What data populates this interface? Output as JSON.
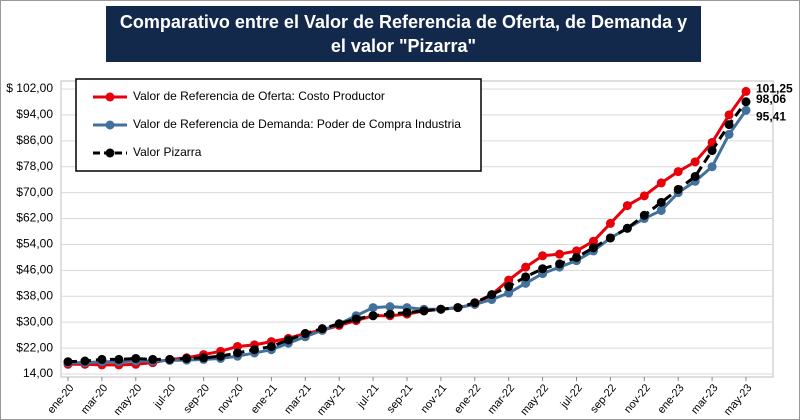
{
  "chart_data": {
    "type": "line",
    "title": "Comparativo entre el Valor de Referencia de Oferta, de Demanda y el valor \"Pizarra\"",
    "categories": [
      "ene-20",
      null,
      "mar-20",
      null,
      "may-20",
      null,
      "jul-20",
      null,
      "sep-20",
      null,
      "nov-20",
      null,
      "ene-21",
      null,
      "mar-21",
      null,
      "may-21",
      null,
      "jul-21",
      null,
      "sep-21",
      null,
      "nov-21",
      null,
      "ene-22",
      null,
      "mar-22",
      null,
      "may-22",
      null,
      "jul-22",
      null,
      "sep-22",
      null,
      "nov-22",
      null,
      "ene-23",
      null,
      "mar-23",
      null,
      "may-23"
    ],
    "series": [
      {
        "name": "Valor de Referencia de Oferta: Costo Productor",
        "color": "#e8000b",
        "style": "solid",
        "values": [
          17.0,
          17.0,
          16.8,
          16.8,
          17.0,
          17.5,
          18.5,
          19.0,
          20.0,
          21.0,
          22.5,
          23.0,
          24.0,
          25.0,
          26.5,
          27.5,
          29.0,
          30.5,
          32.0,
          32.0,
          32.5,
          33.5,
          34.0,
          34.5,
          35.5,
          38.5,
          43.0,
          47.0,
          50.5,
          51.0,
          52.0,
          55.0,
          60.5,
          66.0,
          69.0,
          73.0,
          76.5,
          79.5,
          85.5,
          94.0,
          101.25
        ],
        "value_labels": [
          null,
          null,
          null,
          null,
          null,
          null,
          null,
          null,
          null,
          null,
          null,
          null,
          null,
          null,
          null,
          null,
          null,
          null,
          null,
          null,
          null,
          null,
          null,
          null,
          null,
          null,
          null,
          null,
          null,
          null,
          null,
          null,
          null,
          null,
          null,
          null,
          null,
          null,
          null,
          null,
          "101,25"
        ]
      },
      {
        "name": "Valor de Referencia de Demanda: Poder de Compra Industria",
        "color": "#41719c",
        "style": "solid",
        "values": [
          17.5,
          17.5,
          17.8,
          17.8,
          18.0,
          18.0,
          18.2,
          18.3,
          18.5,
          18.8,
          19.5,
          20.5,
          21.5,
          23.5,
          25.5,
          27.5,
          29.5,
          32.0,
          34.5,
          34.8,
          34.5,
          34.0,
          34.0,
          34.5,
          35.5,
          37.0,
          39.0,
          42.0,
          45.0,
          47.0,
          49.0,
          52.0,
          56.0,
          59.0,
          62.0,
          64.5,
          70.0,
          73.5,
          78.0,
          88.0,
          95.41
        ],
        "value_labels": [
          null,
          null,
          null,
          null,
          null,
          null,
          null,
          null,
          null,
          null,
          null,
          null,
          null,
          null,
          null,
          null,
          null,
          null,
          null,
          null,
          null,
          null,
          null,
          null,
          null,
          null,
          null,
          null,
          null,
          null,
          null,
          null,
          null,
          null,
          null,
          null,
          null,
          null,
          null,
          null,
          "95,41"
        ]
      },
      {
        "name": "Valor Pizarra",
        "color": "#000000",
        "style": "dashed",
        "values": [
          17.8,
          18.0,
          18.5,
          18.5,
          18.8,
          18.5,
          18.5,
          18.8,
          19.0,
          19.5,
          20.5,
          21.5,
          22.5,
          24.5,
          26.5,
          28.0,
          29.5,
          31.0,
          32.0,
          32.5,
          33.0,
          33.5,
          34.0,
          34.5,
          36.0,
          38.5,
          41.0,
          44.0,
          46.5,
          48.0,
          50.0,
          53.0,
          56.0,
          59.0,
          63.0,
          67.0,
          71.0,
          75.0,
          83.0,
          91.0,
          98.06
        ],
        "value_labels": [
          null,
          null,
          null,
          null,
          null,
          null,
          null,
          null,
          null,
          null,
          null,
          null,
          null,
          null,
          null,
          null,
          null,
          null,
          null,
          null,
          null,
          null,
          null,
          null,
          null,
          null,
          null,
          null,
          null,
          null,
          null,
          null,
          null,
          null,
          null,
          null,
          null,
          null,
          null,
          null,
          "98,06"
        ]
      }
    ],
    "ylim": [
      14,
      102
    ],
    "yticks": [
      {
        "value": 14,
        "label": "14,00"
      },
      {
        "value": 22,
        "label": "$22,00"
      },
      {
        "value": 30,
        "label": "$30,00"
      },
      {
        "value": 38,
        "label": "$38,00"
      },
      {
        "value": 46,
        "label": "$46,00"
      },
      {
        "value": 54,
        "label": "$54,00"
      },
      {
        "value": 62,
        "label": "$62,00"
      },
      {
        "value": 70,
        "label": "$70,00"
      },
      {
        "value": 78,
        "label": "$78,00"
      },
      {
        "value": 86,
        "label": "$86,00"
      },
      {
        "value": 94,
        "label": "$94,00"
      },
      {
        "value": 102,
        "label": "$ 102,00"
      }
    ],
    "grid": true,
    "legend": "top-left"
  }
}
